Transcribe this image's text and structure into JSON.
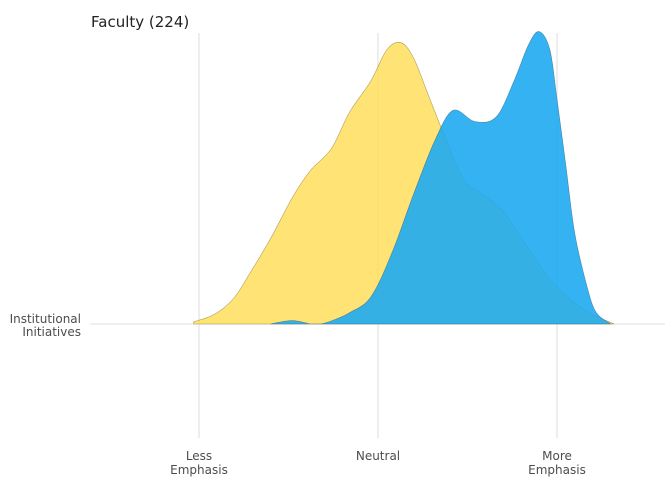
{
  "chart_data": {
    "type": "area",
    "subtype": "ridgeline-density",
    "title": "Faculty (224)",
    "xlabel": "",
    "ylabel": "",
    "xlim": [
      -0.2,
      2.6
    ],
    "x_ticks": [
      {
        "value": 0,
        "label": [
          "Less",
          "Emphasis"
        ]
      },
      {
        "value": 1,
        "label": [
          "Neutral"
        ]
      },
      {
        "value": 2,
        "label": [
          "More",
          "Emphasis"
        ]
      }
    ],
    "rows": [
      {
        "label": [
          "Institutional",
          "Initiatives"
        ]
      }
    ],
    "grid": true,
    "legend": "none",
    "series": [
      {
        "color": "#ffdd55",
        "stroke": "#7a6a2a",
        "x": [
          -0.03,
          0.05,
          0.12,
          0.2,
          0.28,
          0.4,
          0.52,
          0.62,
          0.74,
          0.84,
          0.96,
          1.05,
          1.13,
          1.2,
          1.28,
          1.38,
          1.48,
          1.58,
          1.7,
          1.82,
          1.94,
          2.06,
          2.18,
          2.32
        ],
        "y": [
          0.01,
          0.03,
          0.06,
          0.12,
          0.22,
          0.38,
          0.56,
          0.68,
          0.78,
          0.94,
          1.08,
          1.22,
          1.25,
          1.18,
          1.02,
          0.82,
          0.64,
          0.58,
          0.5,
          0.36,
          0.22,
          0.12,
          0.05,
          0.0
        ]
      },
      {
        "color": "#1eaaf1",
        "stroke": "#2a5a7a",
        "x": [
          0.4,
          0.52,
          0.62,
          0.63,
          0.68,
          0.76,
          0.84,
          0.96,
          1.08,
          1.2,
          1.32,
          1.42,
          1.54,
          1.66,
          1.76,
          1.84,
          1.9,
          1.96,
          2.0,
          2.05,
          2.1,
          2.17,
          2.22,
          2.3
        ],
        "y": [
          0.0,
          0.015,
          0.0,
          0.0,
          0.0,
          0.02,
          0.05,
          0.12,
          0.32,
          0.58,
          0.82,
          0.95,
          0.9,
          0.92,
          1.08,
          1.24,
          1.3,
          1.22,
          1.0,
          0.7,
          0.4,
          0.16,
          0.05,
          0.0
        ]
      }
    ]
  }
}
